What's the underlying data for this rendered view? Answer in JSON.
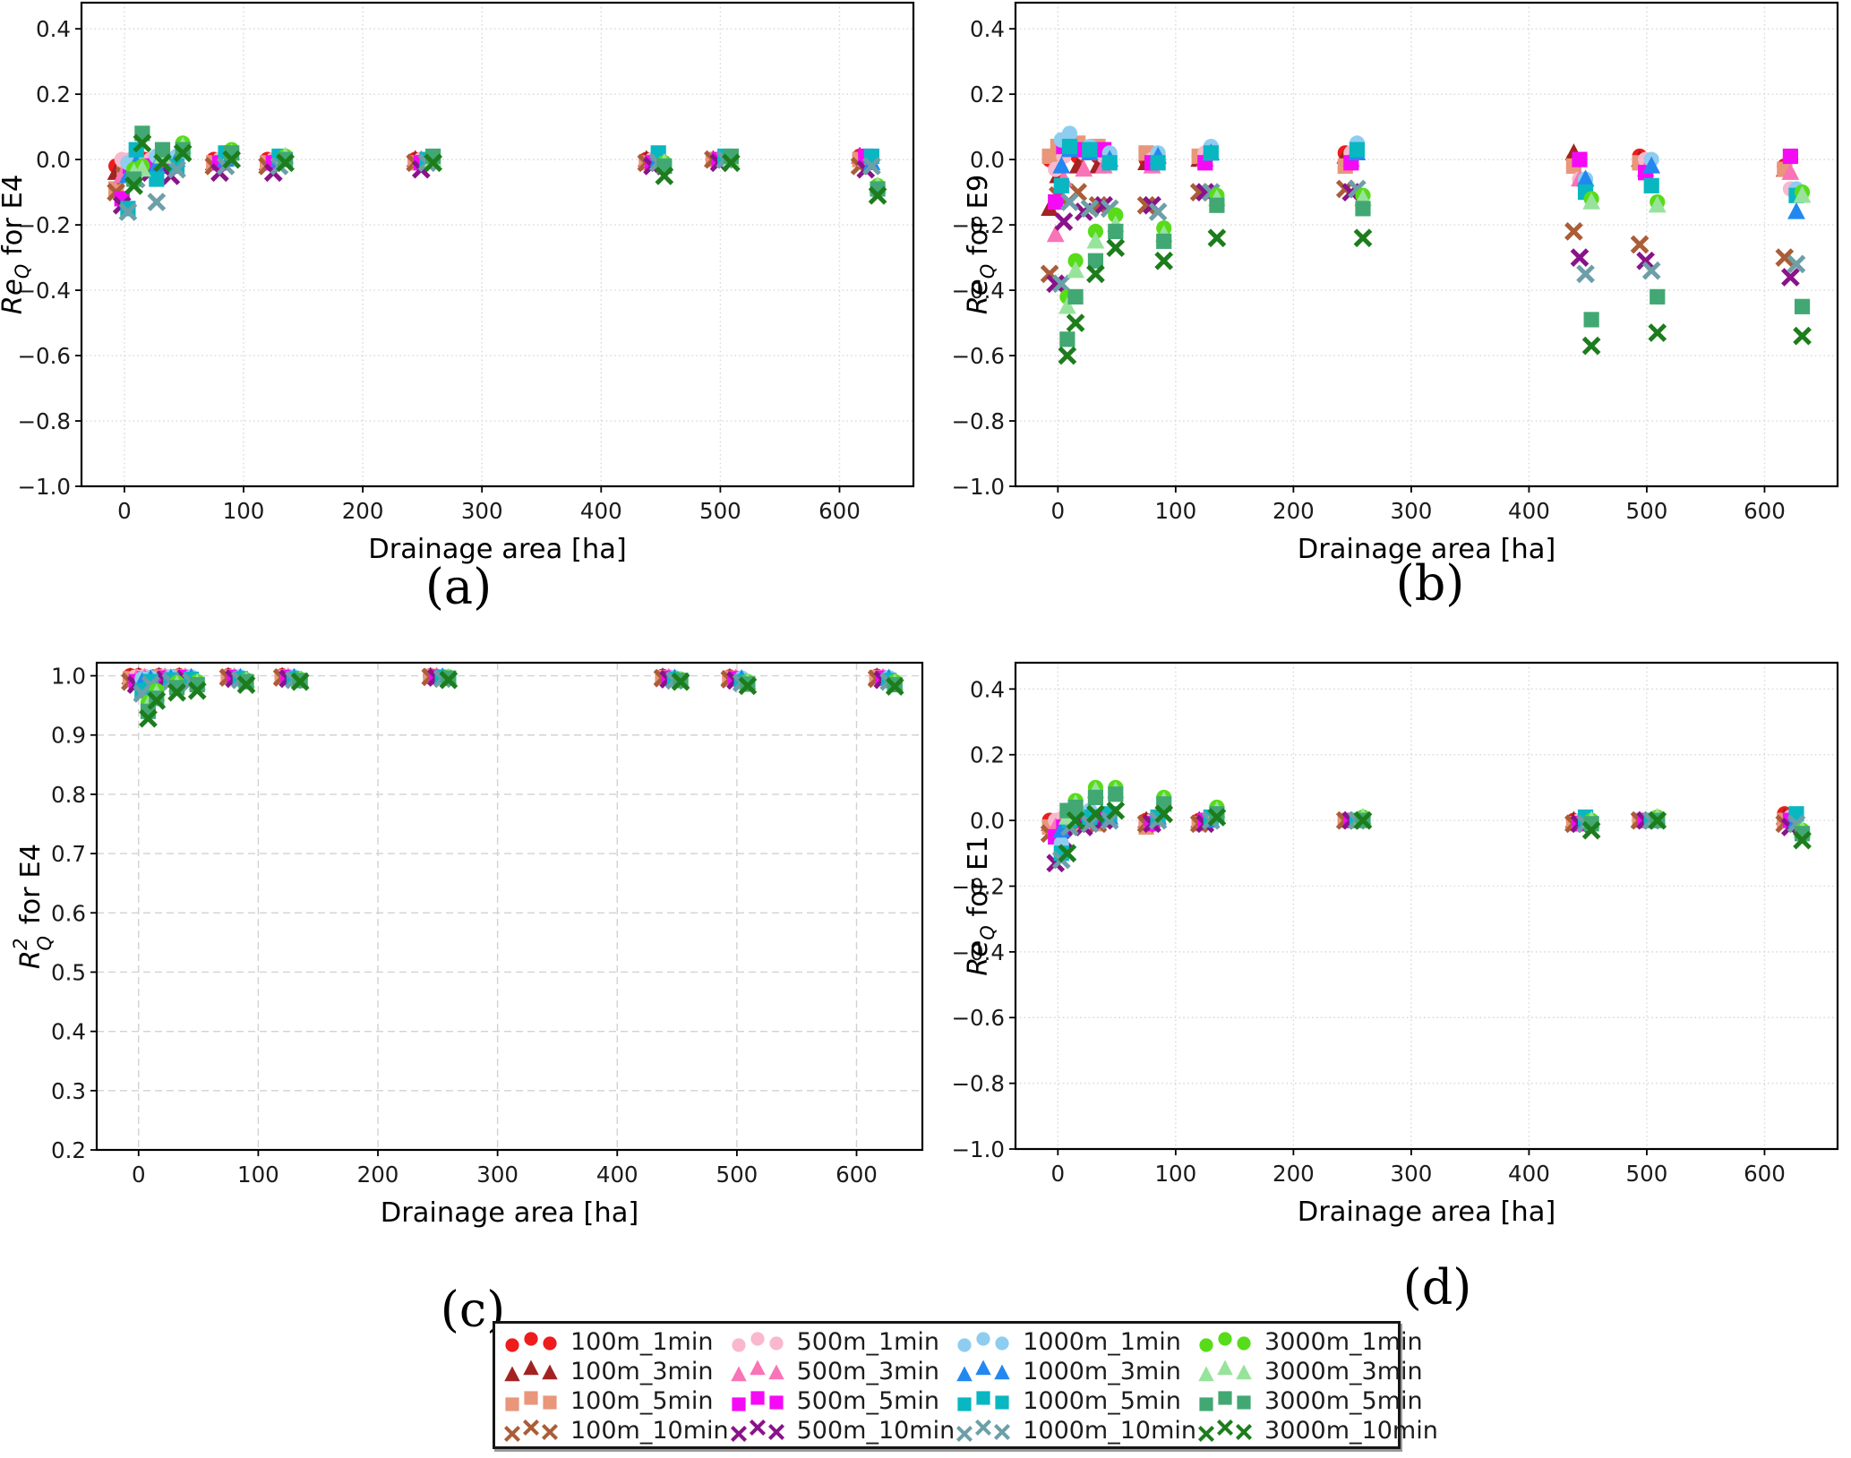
{
  "figure": {
    "background": "#ffffff"
  },
  "captions": {
    "a": "(a)",
    "b": "(b)",
    "c": "(c)",
    "d": "(d)"
  },
  "legend": {
    "entries": [
      {
        "label": "100m_1min",
        "color": "#ee1c1c",
        "marker": "circle"
      },
      {
        "label": "100m_3min",
        "color": "#a32222",
        "marker": "triangle"
      },
      {
        "label": "100m_5min",
        "color": "#e9967a",
        "marker": "square"
      },
      {
        "label": "100m_10min",
        "color": "#ab5d38",
        "marker": "x"
      },
      {
        "label": "500m_1min",
        "color": "#f9b8ce",
        "marker": "circle"
      },
      {
        "label": "500m_3min",
        "color": "#f973b7",
        "marker": "triangle"
      },
      {
        "label": "500m_5min",
        "color": "#f50af5",
        "marker": "square"
      },
      {
        "label": "500m_10min",
        "color": "#891389",
        "marker": "x"
      },
      {
        "label": "1000m_1min",
        "color": "#8fcdf0",
        "marker": "circle"
      },
      {
        "label": "1000m_3min",
        "color": "#2288f0",
        "marker": "triangle"
      },
      {
        "label": "1000m_5min",
        "color": "#08b7c2",
        "marker": "square"
      },
      {
        "label": "1000m_10min",
        "color": "#6d9fa8",
        "marker": "x"
      },
      {
        "label": "3000m_1min",
        "color": "#58dc19",
        "marker": "circle"
      },
      {
        "label": "3000m_3min",
        "color": "#97e39b",
        "marker": "triangle"
      },
      {
        "label": "3000m_5min",
        "color": "#42a873",
        "marker": "square"
      },
      {
        "label": "3000m_10min",
        "color": "#1d7d1d",
        "marker": "x"
      }
    ]
  },
  "chart_data": [
    {
      "id": "a",
      "type": "scatter",
      "caption": "(a)",
      "xlabel": "Drainage area [ha]",
      "ylabel": {
        "italic": "Re",
        "sub": "Q",
        "sup": "",
        "text": " for E4"
      },
      "xlim": [
        -36,
        662
      ],
      "ylim": [
        -1.0,
        0.48
      ],
      "xticks": [
        0,
        100,
        200,
        300,
        400,
        500,
        600
      ],
      "yticks": [
        0.4,
        0.2,
        0.0,
        -0.2,
        -0.4,
        -0.6,
        -0.8,
        -1.0
      ],
      "grid": "dotted",
      "x_sites": [
        1,
        8,
        25,
        42,
        83,
        128,
        252,
        446,
        502,
        625
      ],
      "series": {
        "100m_1min": [
          -0.02,
          -0.01,
          0.0,
          0.0,
          0.0,
          0.0,
          0.0,
          0.0,
          0.0,
          0.01
        ],
        "100m_3min": [
          -0.04,
          -0.02,
          -0.01,
          -0.01,
          -0.01,
          -0.01,
          0.0,
          0.0,
          0.0,
          0.01
        ],
        "100m_5min": [
          -0.09,
          -0.03,
          -0.02,
          -0.01,
          -0.01,
          -0.01,
          -0.01,
          -0.01,
          0.0,
          0.0
        ],
        "100m_10min": [
          -0.1,
          -0.05,
          -0.03,
          -0.03,
          -0.02,
          -0.02,
          -0.01,
          -0.01,
          0.0,
          -0.02
        ],
        "500m_1min": [
          0.0,
          0.0,
          0.0,
          0.0,
          0.0,
          0.0,
          0.0,
          0.0,
          0.0,
          0.0
        ],
        "500m_3min": [
          -0.05,
          -0.01,
          -0.01,
          -0.01,
          -0.01,
          0.0,
          0.0,
          0.0,
          0.0,
          0.0
        ],
        "500m_5min": [
          -0.12,
          -0.02,
          -0.02,
          -0.02,
          -0.01,
          -0.01,
          -0.01,
          -0.01,
          0.0,
          0.01
        ],
        "500m_10min": [
          -0.14,
          -0.04,
          -0.04,
          -0.05,
          -0.04,
          -0.04,
          -0.03,
          -0.02,
          -0.01,
          -0.03
        ],
        "1000m_1min": [
          -0.01,
          0.01,
          0.01,
          0.01,
          0.01,
          0.01,
          0.0,
          0.01,
          0.0,
          0.0
        ],
        "1000m_3min": [
          -0.05,
          -0.01,
          -0.02,
          0.0,
          0.0,
          0.0,
          0.0,
          0.0,
          0.0,
          -0.01
        ],
        "1000m_5min": [
          -0.15,
          0.03,
          -0.06,
          -0.02,
          0.02,
          0.01,
          0.0,
          0.02,
          0.01,
          0.01
        ],
        "1000m_10min": [
          -0.16,
          -0.06,
          -0.13,
          -0.03,
          -0.02,
          -0.02,
          -0.01,
          -0.01,
          0.0,
          -0.02
        ],
        "3000m_1min": [
          -0.03,
          -0.02,
          0.02,
          0.05,
          0.03,
          0.01,
          0.0,
          -0.01,
          0.0,
          -0.08
        ],
        "3000m_3min": [
          -0.04,
          -0.03,
          0.01,
          0.04,
          0.02,
          0.01,
          0.0,
          -0.01,
          0.0,
          -0.08
        ],
        "3000m_5min": [
          -0.06,
          0.08,
          0.03,
          0.03,
          0.02,
          0.0,
          0.01,
          -0.02,
          0.01,
          -0.09
        ],
        "3000m_10min": [
          -0.08,
          0.05,
          -0.01,
          0.02,
          0.0,
          -0.01,
          -0.01,
          -0.05,
          -0.01,
          -0.11
        ]
      }
    },
    {
      "id": "b",
      "type": "scatter",
      "caption": "(b)",
      "xlabel": "Drainage area [ha]",
      "ylabel": {
        "italic": "Re",
        "sub": "Q",
        "sup": "",
        "text": " for E9"
      },
      "xlim": [
        -36,
        662
      ],
      "ylim": [
        -1.0,
        0.48
      ],
      "xticks": [
        0,
        100,
        200,
        300,
        400,
        500,
        600
      ],
      "yticks": [
        0.4,
        0.2,
        0.0,
        -0.2,
        -0.4,
        -0.6,
        -0.8,
        -1.0
      ],
      "grid": "dotted",
      "x_sites": [
        1,
        8,
        25,
        42,
        83,
        128,
        252,
        446,
        502,
        625
      ],
      "series": {
        "100m_1min": [
          0.0,
          0.02,
          0.01,
          0.01,
          0.0,
          0.01,
          0.02,
          0.0,
          0.01,
          -0.02
        ],
        "100m_3min": [
          -0.15,
          -0.05,
          -0.02,
          -0.02,
          -0.01,
          0.0,
          0.01,
          0.02,
          0.0,
          -0.03
        ],
        "100m_5min": [
          0.01,
          0.04,
          0.05,
          0.04,
          0.02,
          0.01,
          -0.02,
          -0.02,
          -0.01,
          -0.03
        ],
        "100m_10min": [
          -0.35,
          -0.11,
          -0.1,
          -0.14,
          -0.14,
          -0.1,
          -0.09,
          -0.22,
          -0.26,
          -0.3
        ],
        "500m_1min": [
          -0.03,
          0.01,
          0.02,
          0.01,
          0.0,
          0.02,
          0.02,
          -0.06,
          0.0,
          -0.09
        ],
        "500m_3min": [
          -0.23,
          -0.06,
          -0.03,
          -0.02,
          -0.02,
          0.0,
          0.0,
          -0.06,
          -0.03,
          -0.04
        ],
        "500m_5min": [
          -0.13,
          0.04,
          0.03,
          0.03,
          -0.01,
          -0.01,
          -0.01,
          0.0,
          -0.04,
          0.01
        ],
        "500m_10min": [
          -0.38,
          -0.19,
          -0.16,
          -0.14,
          -0.14,
          -0.1,
          -0.1,
          -0.3,
          -0.31,
          -0.36
        ],
        "1000m_1min": [
          0.06,
          0.08,
          0.04,
          0.02,
          0.02,
          0.04,
          0.05,
          -0.06,
          0.0,
          -0.09
        ],
        "1000m_3min": [
          -0.02,
          0.03,
          0.02,
          0.0,
          0.01,
          0.02,
          0.02,
          -0.06,
          -0.02,
          -0.16
        ],
        "1000m_5min": [
          -0.08,
          0.04,
          0.03,
          -0.01,
          -0.01,
          0.02,
          0.03,
          -0.1,
          -0.08,
          -0.11
        ],
        "1000m_10min": [
          -0.38,
          -0.13,
          -0.15,
          -0.15,
          -0.16,
          -0.1,
          -0.09,
          -0.35,
          -0.34,
          -0.32
        ],
        "3000m_1min": [
          -0.42,
          -0.31,
          -0.22,
          -0.17,
          -0.21,
          -0.11,
          -0.11,
          -0.12,
          -0.13,
          -0.1
        ],
        "3000m_3min": [
          -0.45,
          -0.34,
          -0.25,
          -0.2,
          -0.23,
          -0.12,
          -0.12,
          -0.13,
          -0.14,
          -0.11
        ],
        "3000m_5min": [
          -0.55,
          -0.42,
          -0.31,
          -0.22,
          -0.25,
          -0.14,
          -0.15,
          -0.49,
          -0.42,
          -0.45
        ],
        "3000m_10min": [
          -0.6,
          -0.5,
          -0.35,
          -0.27,
          -0.31,
          -0.24,
          -0.24,
          -0.57,
          -0.53,
          -0.54
        ]
      }
    },
    {
      "id": "c",
      "type": "scatter",
      "caption": "(c)",
      "xlabel": "Drainage area [ha]",
      "ylabel": {
        "italic": "R",
        "sub": "Q",
        "sup": "2",
        "text": " for E4"
      },
      "xlim": [
        -35,
        655
      ],
      "ylim": [
        0.2,
        1.022
      ],
      "xticks": [
        0,
        100,
        200,
        300,
        400,
        500,
        600
      ],
      "yticks": [
        1.0,
        0.9,
        0.8,
        0.7,
        0.6,
        0.5,
        0.4,
        0.3,
        0.2
      ],
      "grid": "dashed",
      "x_sites": [
        1,
        8,
        25,
        42,
        83,
        128,
        252,
        446,
        502,
        625
      ],
      "series": {
        "100m_1min": [
          1.0,
          1.0,
          1.0,
          1.0,
          1.0,
          1.0,
          1.0,
          0.999,
          0.998,
          0.999
        ],
        "100m_3min": [
          0.998,
          0.999,
          0.999,
          0.999,
          0.999,
          0.999,
          0.999,
          0.998,
          0.997,
          0.998
        ],
        "100m_5min": [
          0.995,
          0.997,
          0.998,
          0.998,
          0.998,
          0.998,
          0.999,
          0.997,
          0.996,
          0.997
        ],
        "100m_10min": [
          0.99,
          0.994,
          0.996,
          0.996,
          0.997,
          0.997,
          0.998,
          0.996,
          0.994,
          0.995
        ],
        "500m_1min": [
          0.998,
          0.999,
          0.999,
          0.999,
          0.999,
          0.999,
          0.999,
          0.998,
          0.997,
          0.998
        ],
        "500m_3min": [
          0.995,
          0.997,
          0.998,
          0.998,
          0.998,
          0.998,
          0.999,
          0.997,
          0.996,
          0.997
        ],
        "500m_5min": [
          0.99,
          0.995,
          0.996,
          0.997,
          0.997,
          0.997,
          0.998,
          0.996,
          0.995,
          0.996
        ],
        "500m_10min": [
          0.985,
          0.99,
          0.993,
          0.994,
          0.995,
          0.995,
          0.997,
          0.994,
          0.992,
          0.993
        ],
        "1000m_1min": [
          0.995,
          0.997,
          0.998,
          0.998,
          0.998,
          0.998,
          0.999,
          0.997,
          0.996,
          0.997
        ],
        "1000m_3min": [
          0.99,
          0.995,
          0.996,
          0.997,
          0.997,
          0.997,
          0.998,
          0.996,
          0.995,
          0.996
        ],
        "1000m_5min": [
          0.975,
          0.99,
          0.993,
          0.994,
          0.995,
          0.995,
          0.997,
          0.994,
          0.99,
          0.992
        ],
        "1000m_10min": [
          0.97,
          0.985,
          0.99,
          0.99,
          0.993,
          0.993,
          0.995,
          0.992,
          0.988,
          0.99
        ],
        "3000m_1min": [
          0.955,
          0.975,
          0.988,
          0.99,
          0.993,
          0.994,
          0.998,
          0.994,
          0.99,
          0.99
        ],
        "3000m_3min": [
          0.95,
          0.97,
          0.985,
          0.988,
          0.992,
          0.993,
          0.997,
          0.993,
          0.989,
          0.988
        ],
        "3000m_5min": [
          0.94,
          0.962,
          0.98,
          0.985,
          0.99,
          0.992,
          0.996,
          0.992,
          0.986,
          0.985
        ],
        "3000m_10min": [
          0.928,
          0.958,
          0.972,
          0.975,
          0.985,
          0.99,
          0.993,
          0.99,
          0.983,
          0.982
        ]
      }
    },
    {
      "id": "d",
      "type": "scatter",
      "caption": "(d)",
      "xlabel": "Drainage area [ha]",
      "ylabel": {
        "italic": "Re",
        "sub": "Q",
        "sup": "",
        "text": " for E1"
      },
      "xlim": [
        -36,
        662
      ],
      "ylim": [
        -1.0,
        0.48
      ],
      "xticks": [
        0,
        100,
        200,
        300,
        400,
        500,
        600
      ],
      "yticks": [
        0.4,
        0.2,
        0.0,
        -0.2,
        -0.4,
        -0.6,
        -0.8,
        -1.0
      ],
      "grid": "dotted",
      "x_sites": [
        1,
        8,
        25,
        42,
        83,
        128,
        252,
        446,
        502,
        625
      ],
      "series": {
        "100m_1min": [
          0.0,
          0.0,
          0.0,
          0.01,
          0.0,
          0.0,
          0.0,
          0.0,
          0.0,
          0.02
        ],
        "100m_3min": [
          -0.01,
          -0.01,
          0.0,
          0.0,
          0.0,
          0.0,
          0.0,
          0.0,
          0.0,
          0.01
        ],
        "100m_5min": [
          -0.02,
          -0.01,
          -0.01,
          -0.01,
          -0.02,
          -0.01,
          0.0,
          -0.01,
          0.0,
          0.0
        ],
        "100m_10min": [
          -0.04,
          -0.02,
          -0.01,
          -0.01,
          -0.01,
          -0.01,
          0.0,
          -0.01,
          0.0,
          -0.01
        ],
        "500m_1min": [
          0.0,
          0.01,
          0.01,
          0.01,
          0.0,
          0.0,
          0.0,
          0.0,
          0.0,
          0.01
        ],
        "500m_3min": [
          -0.02,
          0.0,
          0.0,
          0.0,
          0.0,
          0.0,
          0.0,
          0.0,
          0.0,
          0.0
        ],
        "500m_5min": [
          -0.05,
          -0.02,
          0.0,
          0.01,
          -0.01,
          0.0,
          0.0,
          -0.01,
          0.0,
          0.0
        ],
        "500m_10min": [
          -0.13,
          -0.06,
          -0.02,
          0.0,
          -0.01,
          -0.01,
          0.0,
          -0.01,
          0.0,
          -0.02
        ],
        "1000m_1min": [
          -0.07,
          0.02,
          0.03,
          0.02,
          0.01,
          0.01,
          0.0,
          0.0,
          0.0,
          0.01
        ],
        "1000m_3min": [
          -0.03,
          0.01,
          0.02,
          0.01,
          0.01,
          0.0,
          0.0,
          0.0,
          0.0,
          0.0
        ],
        "1000m_5min": [
          -0.1,
          0.0,
          0.01,
          0.02,
          0.01,
          0.01,
          0.0,
          0.01,
          0.0,
          0.02
        ],
        "1000m_10min": [
          -0.12,
          -0.02,
          -0.01,
          0.0,
          0.0,
          0.0,
          0.0,
          -0.01,
          0.0,
          -0.01
        ],
        "3000m_1min": [
          0.02,
          0.06,
          0.1,
          0.1,
          0.07,
          0.04,
          0.01,
          0.0,
          0.01,
          -0.03
        ],
        "3000m_3min": [
          0.01,
          0.05,
          0.09,
          0.09,
          0.06,
          0.03,
          0.01,
          0.0,
          0.01,
          -0.03
        ],
        "3000m_5min": [
          0.03,
          0.04,
          0.07,
          0.08,
          0.05,
          0.02,
          0.0,
          -0.01,
          0.0,
          -0.04
        ],
        "3000m_10min": [
          -0.1,
          0.0,
          0.02,
          0.03,
          0.02,
          0.01,
          0.0,
          -0.03,
          0.0,
          -0.06
        ]
      }
    }
  ]
}
